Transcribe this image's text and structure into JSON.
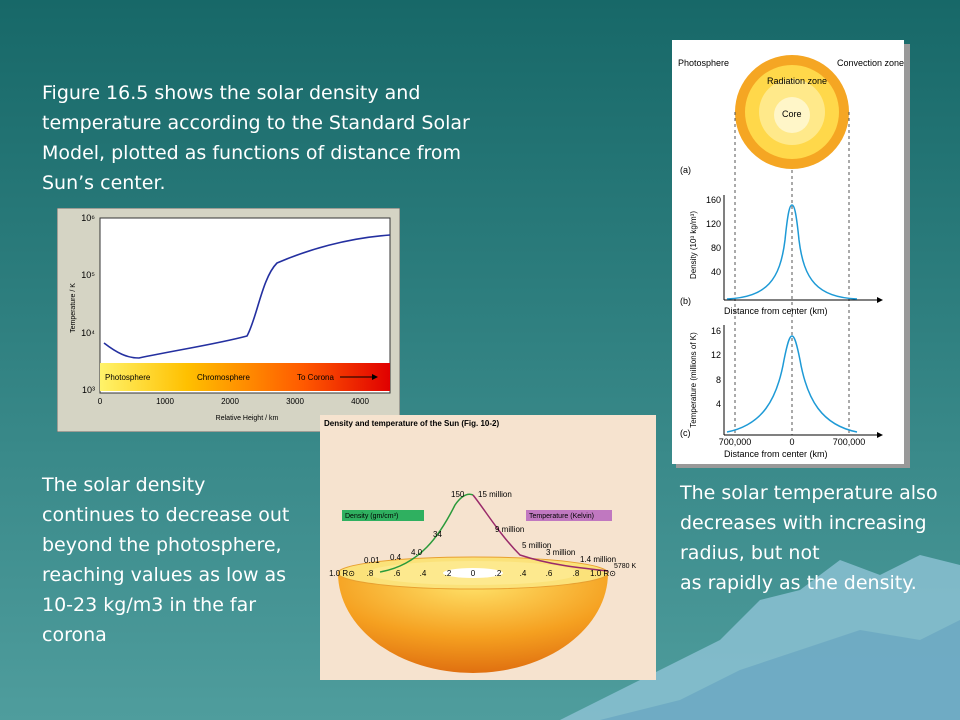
{
  "intro": "Figure 16.5 shows the solar density and temperature according to the Standard Solar Model, plotted as functions of distance from Sun’s center.",
  "left_text": "The solar density continues to decrease out beyond the photosphere, reaching values as low as 10-23 kg/m3 in the far corona",
  "right_text": [
    "The solar temperature also decreases with increasing radius, but not",
    "as rapidly as the density."
  ],
  "figure_temperature": {
    "y_label": "Temperature / K",
    "y_ticks": [
      "10⁶",
      "10⁵",
      "10⁴",
      "10³"
    ],
    "x_ticks": [
      "0",
      "1000",
      "2000",
      "3000",
      "4000"
    ],
    "x_label": "Relative Height / km",
    "regions": [
      "Photosphere",
      "Chromosphere",
      "To Corona"
    ]
  },
  "figure_structure": {
    "labels": [
      "Photosphere",
      "Convection zone",
      "Radiation zone",
      "Core"
    ],
    "panel_a": "(a)",
    "panel_b": "(b)",
    "panel_c": "(c)",
    "density_label": "Density (10³ kg/m³)",
    "density_ticks": [
      "160",
      "120",
      "80",
      "40"
    ],
    "temperature_label": "Temperature (millions of K)",
    "temperature_ticks": [
      "16",
      "12",
      "8",
      "4"
    ],
    "distance_ticks": [
      "700,000",
      "0",
      "700,000"
    ],
    "distance_label_b": "Distance from center (km)",
    "distance_label_c": "Distance from center (km)"
  },
  "figure_sun": {
    "title": "Density and temperature of the Sun (Fig. 10-2)",
    "density_legend": "Density (gm/cm³)",
    "temperature_legend": "Temperature (Kelvin)",
    "density_values": [
      "150",
      "34",
      "4.0",
      "0.4",
      "0.01"
    ],
    "temperature_values": [
      "15 million",
      "9 million",
      "5 million",
      "3 million",
      "1.4 million"
    ],
    "radius_ticks": [
      "1.0 R⊙",
      ".8",
      ".6",
      ".4",
      ".2",
      "0",
      ".2",
      ".4",
      ".6",
      ".8",
      "1.0 R⊙"
    ],
    "surface_temperature": "5780 K"
  }
}
